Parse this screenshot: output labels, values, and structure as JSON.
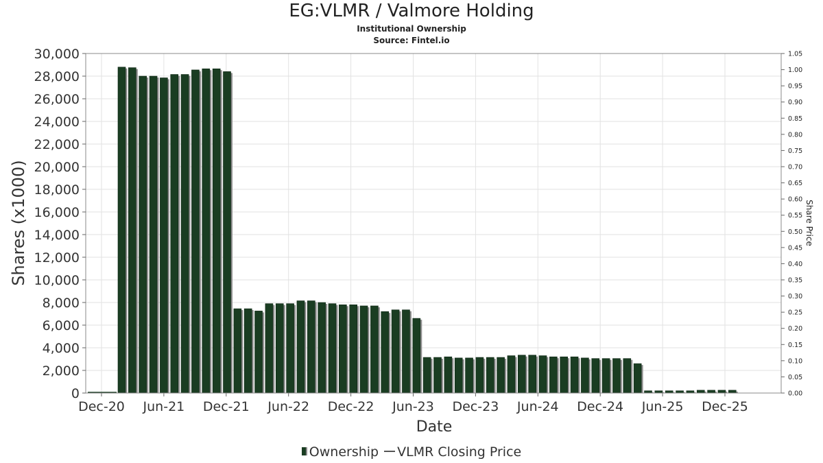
{
  "chart_data": {
    "type": "bar",
    "title": "EG:VLMR / Valmore Holding",
    "subtitle_lines": [
      "Institutional Ownership",
      "Source: Fintel.io"
    ],
    "xlabel": "Date",
    "ylabel": "Shares (x1000)",
    "y2label": "Share Price",
    "ylim": [
      0,
      30000
    ],
    "y_ticks": [
      0,
      2000,
      4000,
      6000,
      8000,
      10000,
      12000,
      14000,
      16000,
      18000,
      20000,
      22000,
      24000,
      26000,
      28000,
      30000
    ],
    "y_tick_labels": [
      "0",
      "2,000",
      "4,000",
      "6,000",
      "8,000",
      "10,000",
      "12,000",
      "14,000",
      "16,000",
      "18,000",
      "20,000",
      "22,000",
      "24,000",
      "26,000",
      "28,000",
      "30,000"
    ],
    "y2lim": [
      0,
      1.05
    ],
    "y2_tick_labels": [
      "0.00",
      "0.05",
      "0.10",
      "0.15",
      "0.20",
      "0.25",
      "0.30",
      "0.35",
      "0.40",
      "0.45",
      "0.50",
      "0.55",
      "0.60",
      "0.65",
      "0.70",
      "0.75",
      "0.80",
      "0.85",
      "0.90",
      "0.95",
      "1.00",
      "1.05"
    ],
    "x_tick_labels": [
      "Dec-20",
      "Jun-21",
      "Dec-21",
      "Jun-22",
      "Dec-22",
      "Jun-23",
      "Dec-23",
      "Jun-24",
      "Dec-24",
      "Jun-25",
      "Dec-25"
    ],
    "series": [
      {
        "name": "Ownership",
        "kind": "bar",
        "color": "#1a3d22",
        "values": [
          28800,
          28750,
          28000,
          28000,
          27850,
          28150,
          28150,
          28550,
          28650,
          28650,
          28400,
          7450,
          7450,
          7250,
          7900,
          7900,
          7900,
          8150,
          8150,
          8000,
          7900,
          7800,
          7800,
          7700,
          7700,
          7200,
          7350,
          7350,
          6600,
          3150,
          3150,
          3200,
          3100,
          3100,
          3150,
          3150,
          3150,
          3300,
          3350,
          3350,
          3300,
          3200,
          3200,
          3200,
          3100,
          3050,
          3050,
          3050,
          3050,
          2600,
          200,
          200,
          200,
          200,
          200,
          250,
          250,
          250,
          250
        ]
      },
      {
        "name": "VLMR Closing Price",
        "kind": "line",
        "color": "#555555",
        "values": []
      }
    ],
    "legend": [
      "Ownership",
      "VLMR Closing Price"
    ],
    "legend_position": "bottom-center",
    "grid": true
  }
}
